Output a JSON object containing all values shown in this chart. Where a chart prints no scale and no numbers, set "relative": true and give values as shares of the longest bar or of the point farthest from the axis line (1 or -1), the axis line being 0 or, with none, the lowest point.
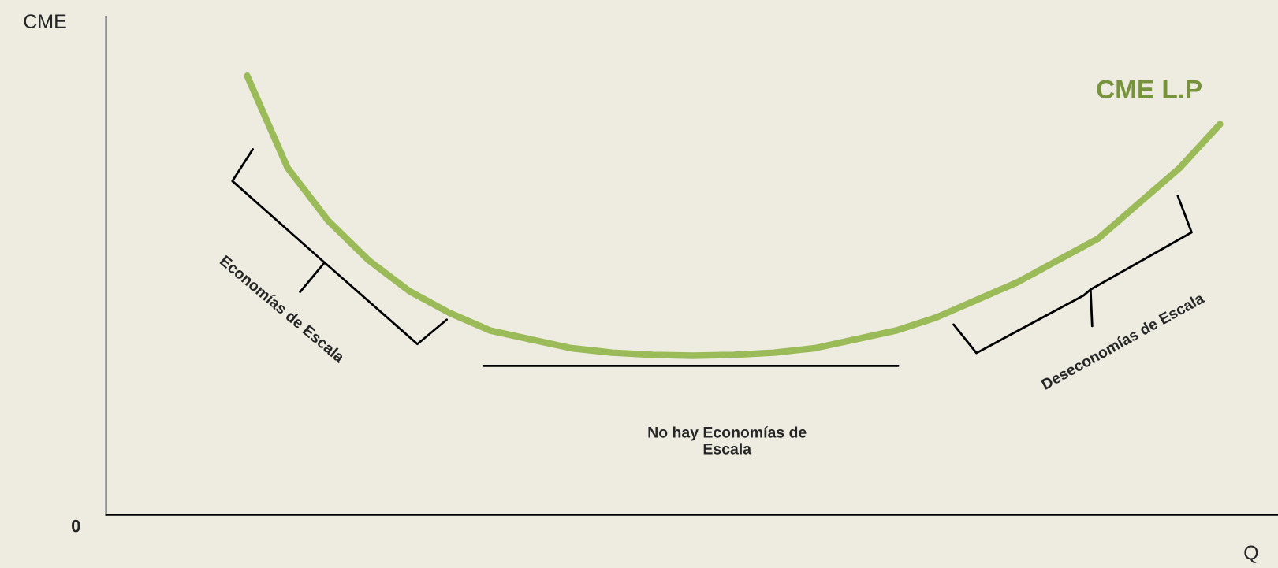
{
  "chart_data": {
    "type": "line",
    "relative": true,
    "xlabel": "Q",
    "categories": [
      null,
      null,
      null,
      null,
      null,
      null,
      null,
      null,
      null,
      null,
      null,
      null,
      null,
      null,
      null,
      null,
      null,
      null,
      null,
      null,
      null,
      null,
      null,
      null,
      null
    ],
    "series": [
      {
        "name": "CME L.P",
        "color": "#9bbb59",
        "values": [
          1.0,
          0.79,
          0.67,
          0.58,
          0.51,
          0.46,
          0.42,
          0.4,
          0.38,
          0.37,
          0.365,
          0.363,
          0.365,
          0.37,
          0.38,
          0.4,
          0.42,
          0.45,
          0.49,
          0.53,
          0.58,
          0.63,
          0.71,
          0.79,
          0.89
        ]
      }
    ],
    "ref_lines": [
      {
        "axis": "y",
        "value": 0.34,
        "color": "#000000"
      }
    ],
    "annotations": [
      "CME",
      "0",
      "Economías de Escala",
      "No hay Economías de\nEscala",
      "Deseconomías de Escala"
    ]
  }
}
